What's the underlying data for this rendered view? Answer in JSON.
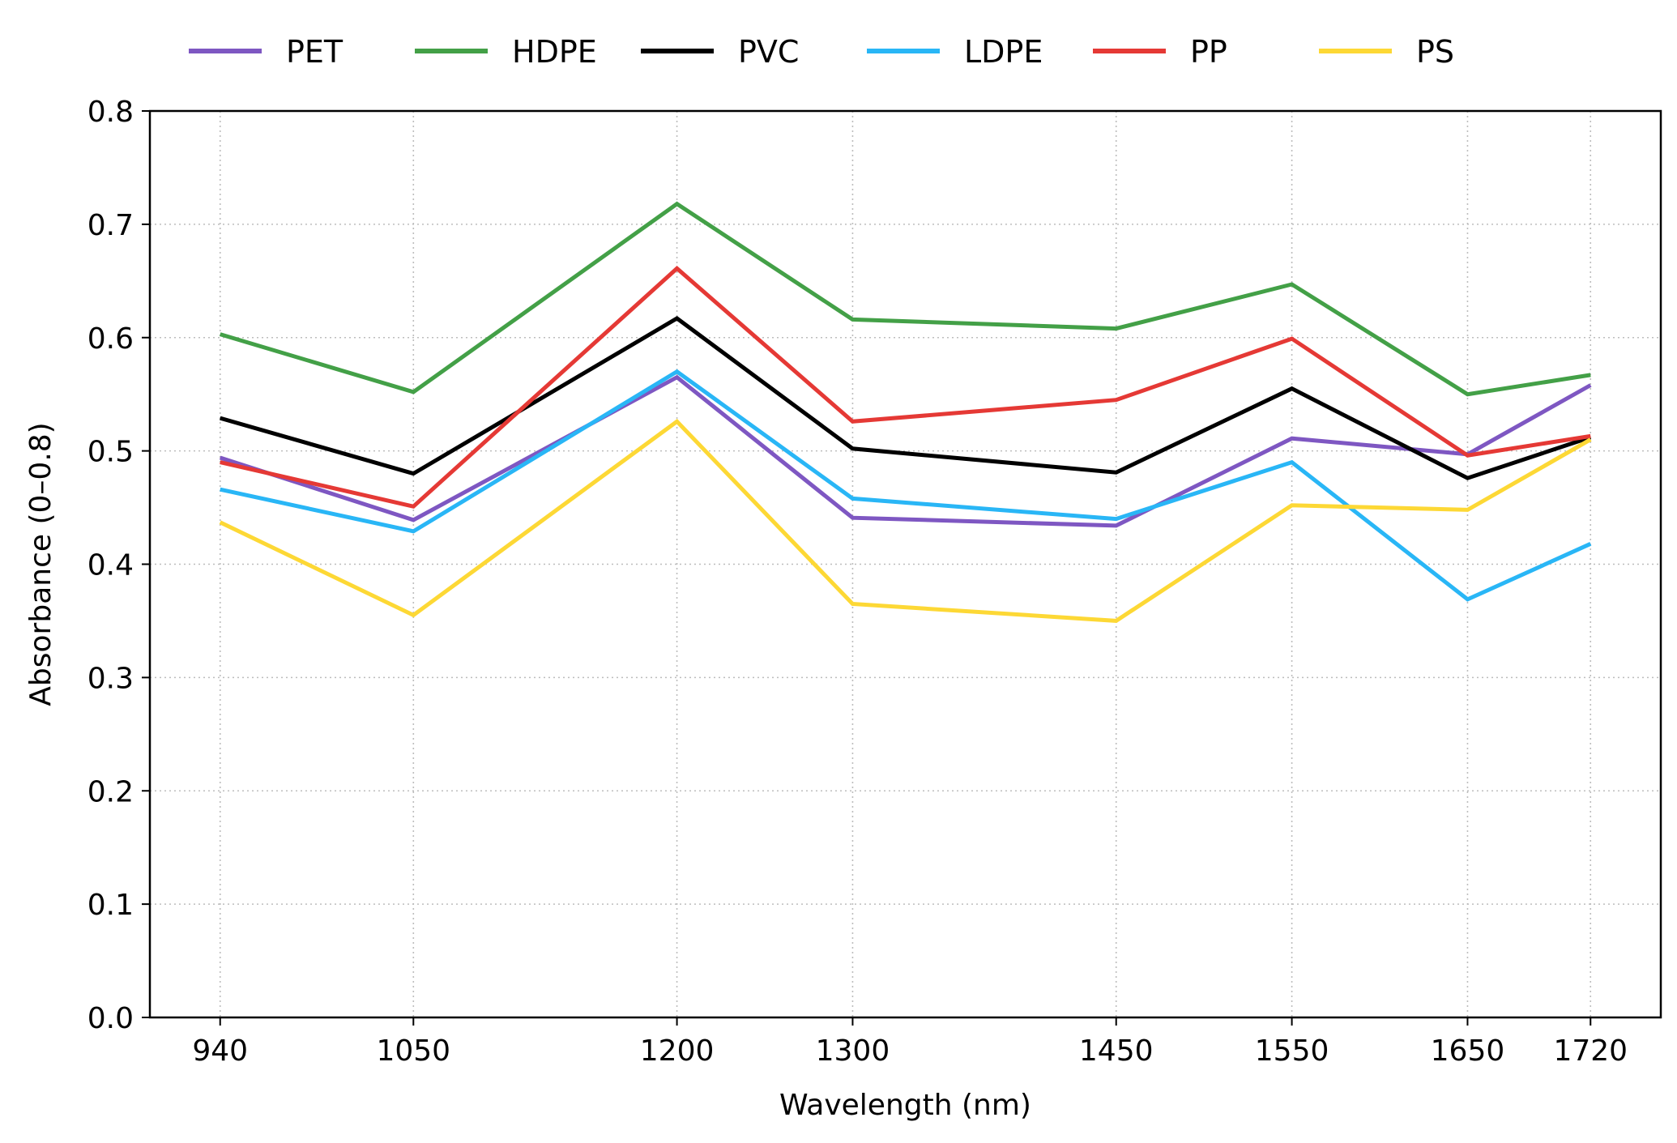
{
  "chart_data": {
    "type": "line",
    "title": "",
    "xlabel": "Wavelength (nm)",
    "ylabel": "Absorbance (0–0.8)",
    "x": [
      940,
      1050,
      1200,
      1300,
      1450,
      1550,
      1650,
      1720
    ],
    "x_tick_labels": [
      "940",
      "1050",
      "1200",
      "1300",
      "1450",
      "1550",
      "1650",
      "1720"
    ],
    "xlim": [
      900,
      1760
    ],
    "ylim": [
      0.0,
      0.8
    ],
    "y_ticks": [
      0.0,
      0.1,
      0.2,
      0.3,
      0.4,
      0.5,
      0.6,
      0.7,
      0.8
    ],
    "y_tick_labels": [
      "0.0",
      "0.1",
      "0.2",
      "0.3",
      "0.4",
      "0.5",
      "0.6",
      "0.7",
      "0.8"
    ],
    "grid": true,
    "legend_position": "top",
    "series": [
      {
        "name": "PET",
        "color": "#7e57c2",
        "values": [
          0.494,
          0.439,
          0.565,
          0.441,
          0.434,
          0.511,
          0.497,
          0.558
        ]
      },
      {
        "name": "HDPE",
        "color": "#43a047",
        "values": [
          0.603,
          0.552,
          0.718,
          0.616,
          0.608,
          0.647,
          0.55,
          0.567
        ]
      },
      {
        "name": "PVC",
        "color": "#000000",
        "values": [
          0.529,
          0.48,
          0.617,
          0.502,
          0.481,
          0.555,
          0.476,
          0.512
        ]
      },
      {
        "name": "LDPE",
        "color": "#29b6f6",
        "values": [
          0.466,
          0.429,
          0.57,
          0.458,
          0.44,
          0.49,
          0.369,
          0.418
        ]
      },
      {
        "name": "PP",
        "color": "#e53935",
        "values": [
          0.49,
          0.451,
          0.661,
          0.526,
          0.545,
          0.599,
          0.496,
          0.513
        ]
      },
      {
        "name": "PS",
        "color": "#fdd835",
        "values": [
          0.437,
          0.355,
          0.526,
          0.365,
          0.35,
          0.452,
          0.448,
          0.51
        ]
      }
    ]
  }
}
